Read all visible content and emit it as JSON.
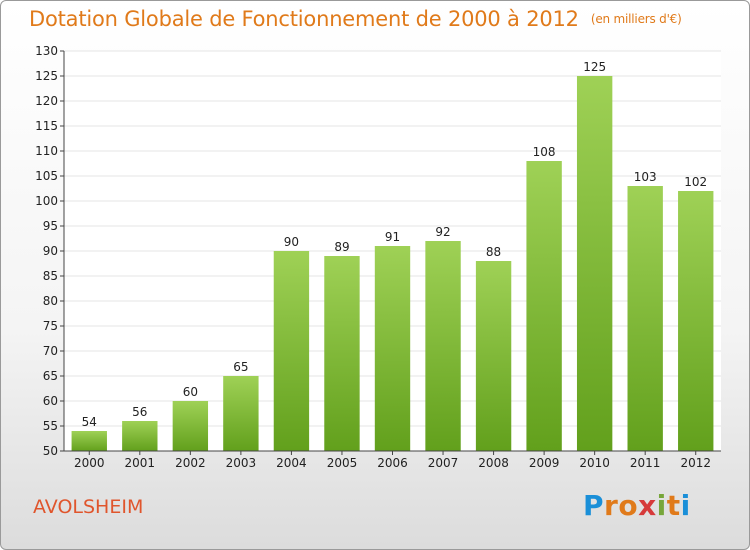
{
  "header": {
    "title": "Dotation Globale de Fonctionnement de 2000 à 2012",
    "subtitle": "(en milliers d'€)"
  },
  "footer": {
    "commune": "AVOLSHEIM",
    "logo_letters": [
      "P",
      "r",
      "o",
      "x",
      "i",
      "t",
      "i"
    ],
    "logo_colors": [
      "#1a8fd8",
      "#e07a1a",
      "#e07a1a",
      "#d63a3a",
      "#77a63a",
      "#e07a1a",
      "#1a8fd8"
    ]
  },
  "colors": {
    "title": "#e07a1a",
    "commune": "#e0552c",
    "bar_top": "#9fd156",
    "bar_bottom": "#62a01c",
    "grid": "#e4e4e4"
  },
  "chart_data": {
    "type": "bar",
    "categories": [
      "2000",
      "2001",
      "2002",
      "2003",
      "2004",
      "2005",
      "2006",
      "2007",
      "2008",
      "2009",
      "2010",
      "2011",
      "2012"
    ],
    "values": [
      54,
      56,
      60,
      65,
      90,
      89,
      91,
      92,
      88,
      108,
      125,
      103,
      102
    ],
    "title": "Dotation Globale de Fonctionnement de 2000 à 2012",
    "subtitle": "(en milliers d'€)",
    "xlabel": "",
    "ylabel": "",
    "ylim": [
      50,
      130
    ],
    "yticks": [
      50,
      55,
      60,
      65,
      70,
      75,
      80,
      85,
      90,
      95,
      100,
      105,
      110,
      115,
      120,
      125,
      130
    ],
    "grid": true,
    "data_labels": true
  }
}
